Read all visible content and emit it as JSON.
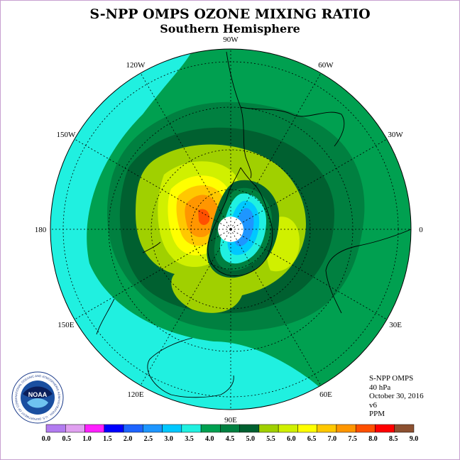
{
  "header": {
    "title": "S-NPP OMPS OZONE MIXING RATIO",
    "subtitle": "Southern Hemisphere"
  },
  "map": {
    "projection": "south polar stereographic",
    "longitude_labels": [
      "90W",
      "60W",
      "30W",
      "0",
      "30E",
      "60E",
      "90E",
      "120E",
      "150E",
      "180",
      "150W",
      "120W"
    ]
  },
  "info": {
    "instrument": "S-NPP OMPS",
    "level": "40 hPa",
    "date": "October 30, 2016",
    "version": "v6",
    "units": "PPM"
  },
  "colorbar": {
    "ticks": [
      "0.0",
      "0.5",
      "1.0",
      "1.5",
      "2.0",
      "2.5",
      "3.0",
      "3.5",
      "4.0",
      "4.5",
      "5.0",
      "5.5",
      "6.0",
      "6.5",
      "7.0",
      "7.5",
      "8.0",
      "8.5",
      "9.0"
    ],
    "colors": [
      "#b27cf0",
      "#e0a0f0",
      "#ff20ff",
      "#0000ff",
      "#1e64ff",
      "#1e96ff",
      "#00c8ff",
      "#20f0e0",
      "#00a050",
      "#008040",
      "#006030",
      "#a0d000",
      "#d0f000",
      "#ffff00",
      "#ffc800",
      "#ff9600",
      "#ff5000",
      "#ff0000",
      "#8c5030"
    ]
  },
  "logo": {
    "text": "NOAA",
    "ring_text": "NATIONAL OCEANIC AND ATMOSPHERIC ADMINISTRATION · U.S. DEPARTMENT OF COMMERCE"
  }
}
